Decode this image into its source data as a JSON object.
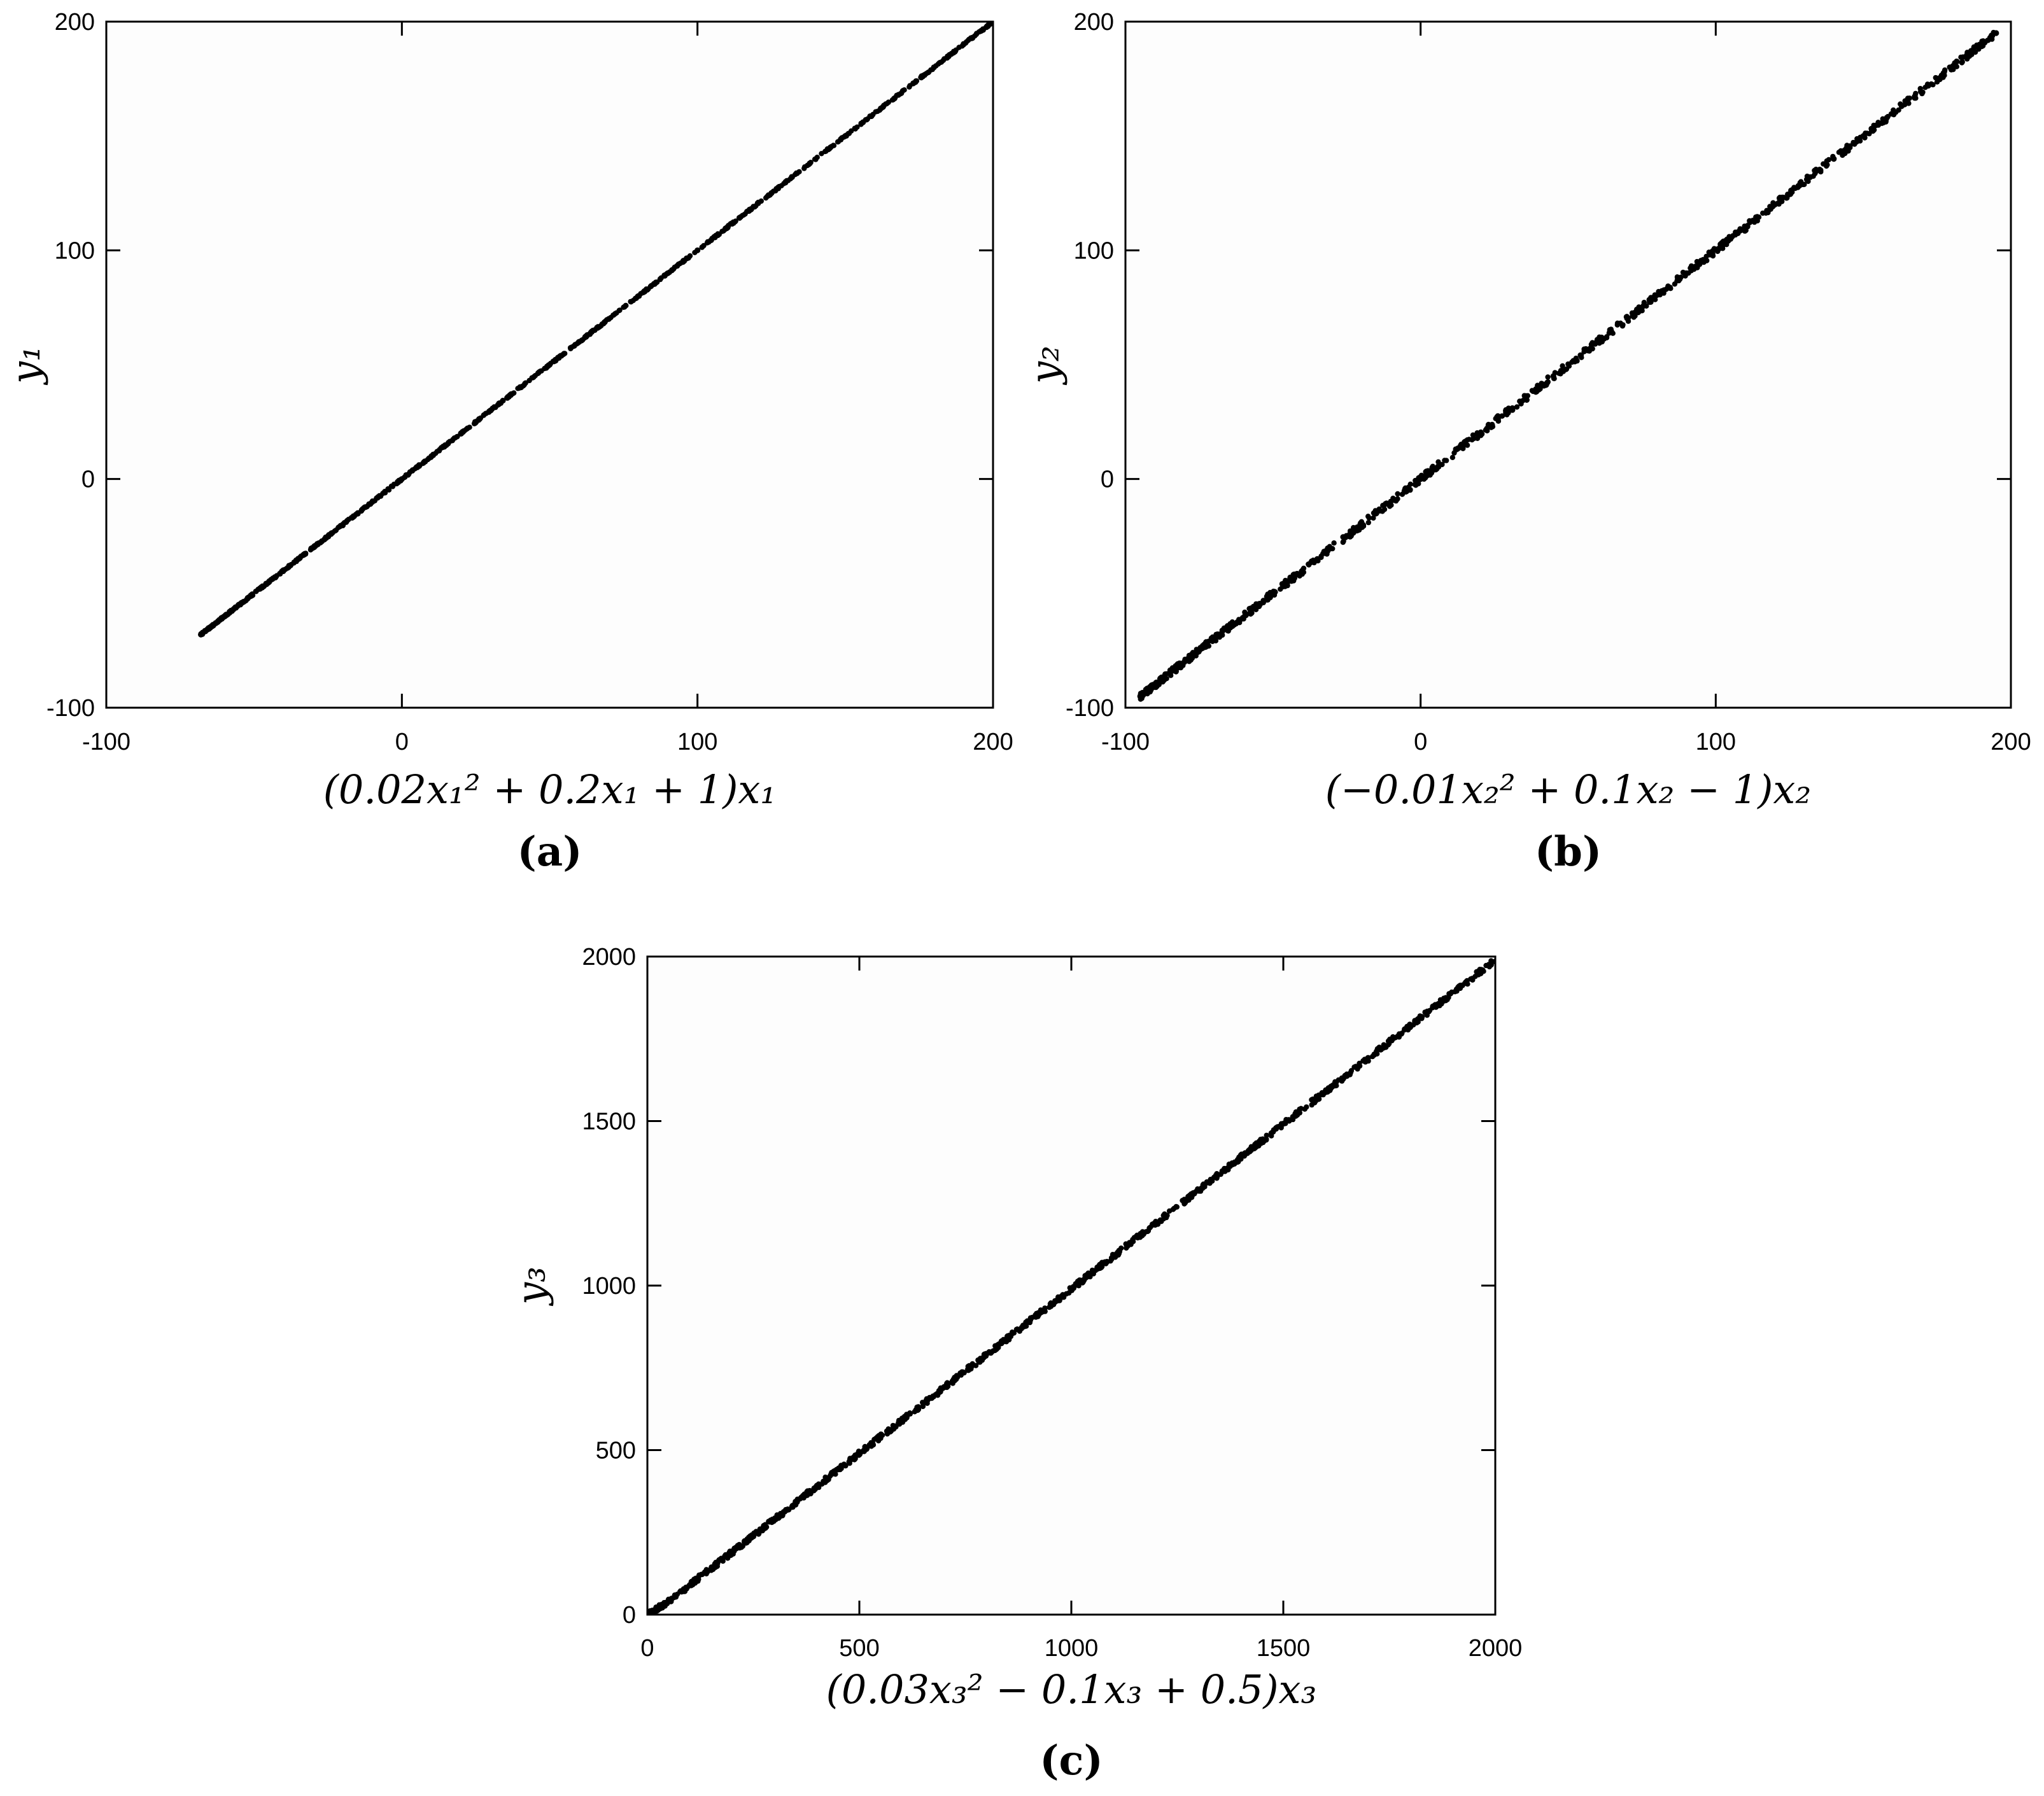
{
  "chart_data": [
    {
      "type": "scatter",
      "panel_label": "(a)",
      "xlabel": "(0.02x₁² + 0.2x₁ + 1)x₁",
      "ylabel": "y₁",
      "xlim": [
        -100,
        200
      ],
      "ylim": [
        -100,
        200
      ],
      "xticks": [
        "-100",
        "0",
        "100",
        "200"
      ],
      "yticks": [
        "-100",
        "0",
        "100",
        "200"
      ],
      "grid": false,
      "data_trend": {
        "x_min": -68,
        "x_max": 199,
        "slope": 1.0,
        "intercept": 0,
        "spread": 0.4,
        "n_points": 900
      },
      "points": [
        [
          -68,
          -68
        ],
        [
          -66,
          -66
        ],
        [
          -63,
          -63
        ],
        [
          -60,
          -60
        ],
        [
          -57,
          -57
        ],
        [
          -54,
          -54
        ],
        [
          -51,
          -51
        ],
        [
          -48,
          -48
        ],
        [
          -45,
          -45
        ],
        [
          -40,
          -40
        ],
        [
          -35,
          -35
        ],
        [
          -30,
          -30
        ],
        [
          -25,
          -25
        ],
        [
          -20,
          -20
        ],
        [
          -10,
          -10
        ],
        [
          0,
          0
        ],
        [
          10,
          10
        ],
        [
          20,
          20
        ],
        [
          30,
          30
        ],
        [
          40,
          40
        ],
        [
          50,
          50
        ],
        [
          60,
          60
        ],
        [
          70,
          70
        ],
        [
          80,
          80
        ],
        [
          90,
          90
        ],
        [
          100,
          100
        ],
        [
          110,
          110
        ],
        [
          118,
          118
        ],
        [
          125,
          125
        ],
        [
          132,
          132
        ],
        [
          138,
          138
        ],
        [
          145,
          145
        ],
        [
          150,
          150
        ],
        [
          156,
          156
        ],
        [
          162,
          162
        ],
        [
          168,
          168
        ],
        [
          173,
          173
        ],
        [
          180,
          180
        ],
        [
          186,
          186
        ],
        [
          190,
          190
        ],
        [
          193,
          193
        ],
        [
          196,
          196
        ],
        [
          199,
          199
        ]
      ]
    },
    {
      "type": "scatter",
      "panel_label": "(b)",
      "xlabel": "(−0.01x₂² + 0.1x₂ − 1)x₂",
      "ylabel": "y₂",
      "xlim": [
        -100,
        200
      ],
      "ylim": [
        -100,
        200
      ],
      "xticks": [
        "-100",
        "0",
        "100",
        "200"
      ],
      "yticks": [
        "-100",
        "0",
        "100",
        "200"
      ],
      "grid": false,
      "data_trend": {
        "x_min": -95,
        "x_max": 195,
        "slope": 1.0,
        "intercept": 0,
        "spread": 1.5,
        "n_points": 900
      },
      "points": [
        [
          -95,
          -95
        ],
        [
          -92,
          -92
        ],
        [
          -88,
          -88
        ],
        [
          -85,
          -85
        ],
        [
          -80,
          -80
        ],
        [
          -75,
          -75
        ],
        [
          -70,
          -70
        ],
        [
          -65,
          -65
        ],
        [
          -55,
          -55
        ],
        [
          -45,
          -45
        ],
        [
          -35,
          -35
        ],
        [
          -25,
          -25
        ],
        [
          -15,
          -15
        ],
        [
          0,
          0
        ],
        [
          15,
          15
        ],
        [
          30,
          30
        ],
        [
          45,
          45
        ],
        [
          60,
          60
        ],
        [
          75,
          75
        ],
        [
          90,
          90
        ],
        [
          105,
          105
        ],
        [
          120,
          120
        ],
        [
          132,
          132
        ],
        [
          140,
          140
        ],
        [
          150,
          150
        ],
        [
          158,
          158
        ],
        [
          165,
          165
        ],
        [
          172,
          172
        ],
        [
          180,
          180
        ],
        [
          186,
          186
        ],
        [
          193,
          193
        ],
        [
          195,
          195
        ]
      ]
    },
    {
      "type": "scatter",
      "panel_label": "(c)",
      "xlabel": "(0.03x₃² − 0.1x₃ + 0.5)x₃",
      "ylabel": "y₃",
      "xlim": [
        0,
        2000
      ],
      "ylim": [
        0,
        2000
      ],
      "xticks": [
        "0",
        "500",
        "1000",
        "1500",
        "2000"
      ],
      "yticks": [
        "0",
        "500",
        "1000",
        "1500",
        "2000"
      ],
      "grid": false,
      "data_trend": {
        "x_min": 0,
        "x_max": 2000,
        "slope": 1.0,
        "intercept": -10,
        "spread": 8,
        "n_points": 1100
      },
      "points": [
        [
          2,
          0
        ],
        [
          10,
          2
        ],
        [
          25,
          15
        ],
        [
          50,
          40
        ],
        [
          100,
          90
        ],
        [
          200,
          190
        ],
        [
          300,
          290
        ],
        [
          400,
          392
        ],
        [
          500,
          492
        ],
        [
          600,
          592
        ],
        [
          700,
          692
        ],
        [
          800,
          792
        ],
        [
          900,
          892
        ],
        [
          1000,
          992
        ],
        [
          1100,
          1092
        ],
        [
          1200,
          1192
        ],
        [
          1300,
          1292
        ],
        [
          1400,
          1392
        ],
        [
          1500,
          1492
        ],
        [
          1600,
          1592
        ],
        [
          1650,
          1642
        ],
        [
          1700,
          1692
        ],
        [
          1760,
          1752
        ],
        [
          1820,
          1812
        ],
        [
          1880,
          1872
        ],
        [
          1920,
          1912
        ],
        [
          1960,
          1955
        ],
        [
          1990,
          1975
        ],
        [
          2000,
          1985
        ]
      ]
    }
  ]
}
